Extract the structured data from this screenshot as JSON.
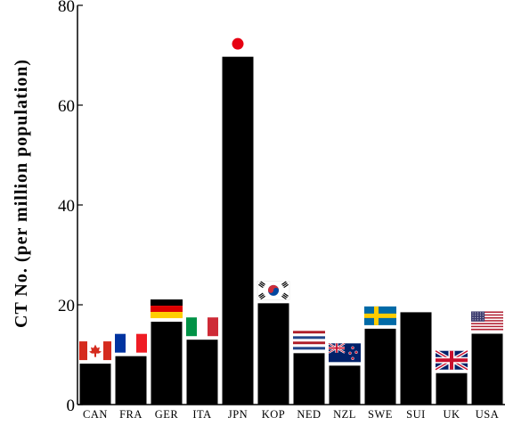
{
  "chart_data": {
    "type": "bar",
    "title": "",
    "xlabel": "",
    "ylabel": "CT No. (per million population)",
    "ylim": [
      0,
      80
    ],
    "yticks": [
      0,
      20,
      40,
      60,
      80
    ],
    "grid": false,
    "categories": [
      "CAN",
      "FRA",
      "GER",
      "ITA",
      "JPN",
      "KOP",
      "NED",
      "NZL",
      "SWE",
      "SUI",
      "UK",
      "USA"
    ],
    "values": [
      8.2,
      9.7,
      16.6,
      13.0,
      69.7,
      20.3,
      10.3,
      7.8,
      15.2,
      18.5,
      6.3,
      14.2
    ],
    "bar_color": "#000000",
    "flags": [
      "canada-flag",
      "france-flag",
      "germany-flag",
      "italy-flag",
      "japan-flag",
      "korea-flag",
      "netherlands-flag",
      "new-zealand-flag",
      "sweden-flag",
      "",
      "uk-flag",
      "usa-flag"
    ]
  }
}
